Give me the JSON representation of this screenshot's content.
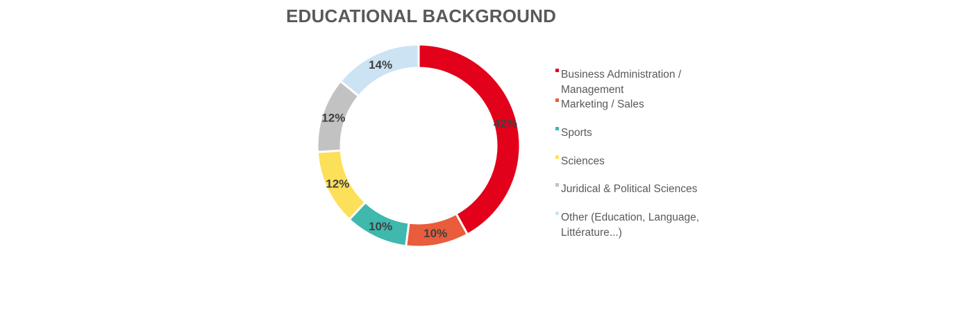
{
  "chart_data": {
    "type": "pie",
    "title": "EDUCATIONAL BACKGROUND",
    "categories": [
      "Business Administration / Management",
      "Marketing / Sales",
      "Sports",
      "Sciences",
      "Juridical & Political Sciences",
      "Other (Education, Language, Littérature...)"
    ],
    "values": [
      42,
      10,
      10,
      12,
      12,
      14
    ],
    "data_labels": [
      "42%",
      "10%",
      "10%",
      "12%",
      "12%",
      "14%"
    ],
    "colors": [
      "#e2001a",
      "#e95c3c",
      "#3fb8ae",
      "#fde05a",
      "#c2c2c2",
      "#cce3f3"
    ],
    "style": "donut",
    "legend_position": "right"
  }
}
